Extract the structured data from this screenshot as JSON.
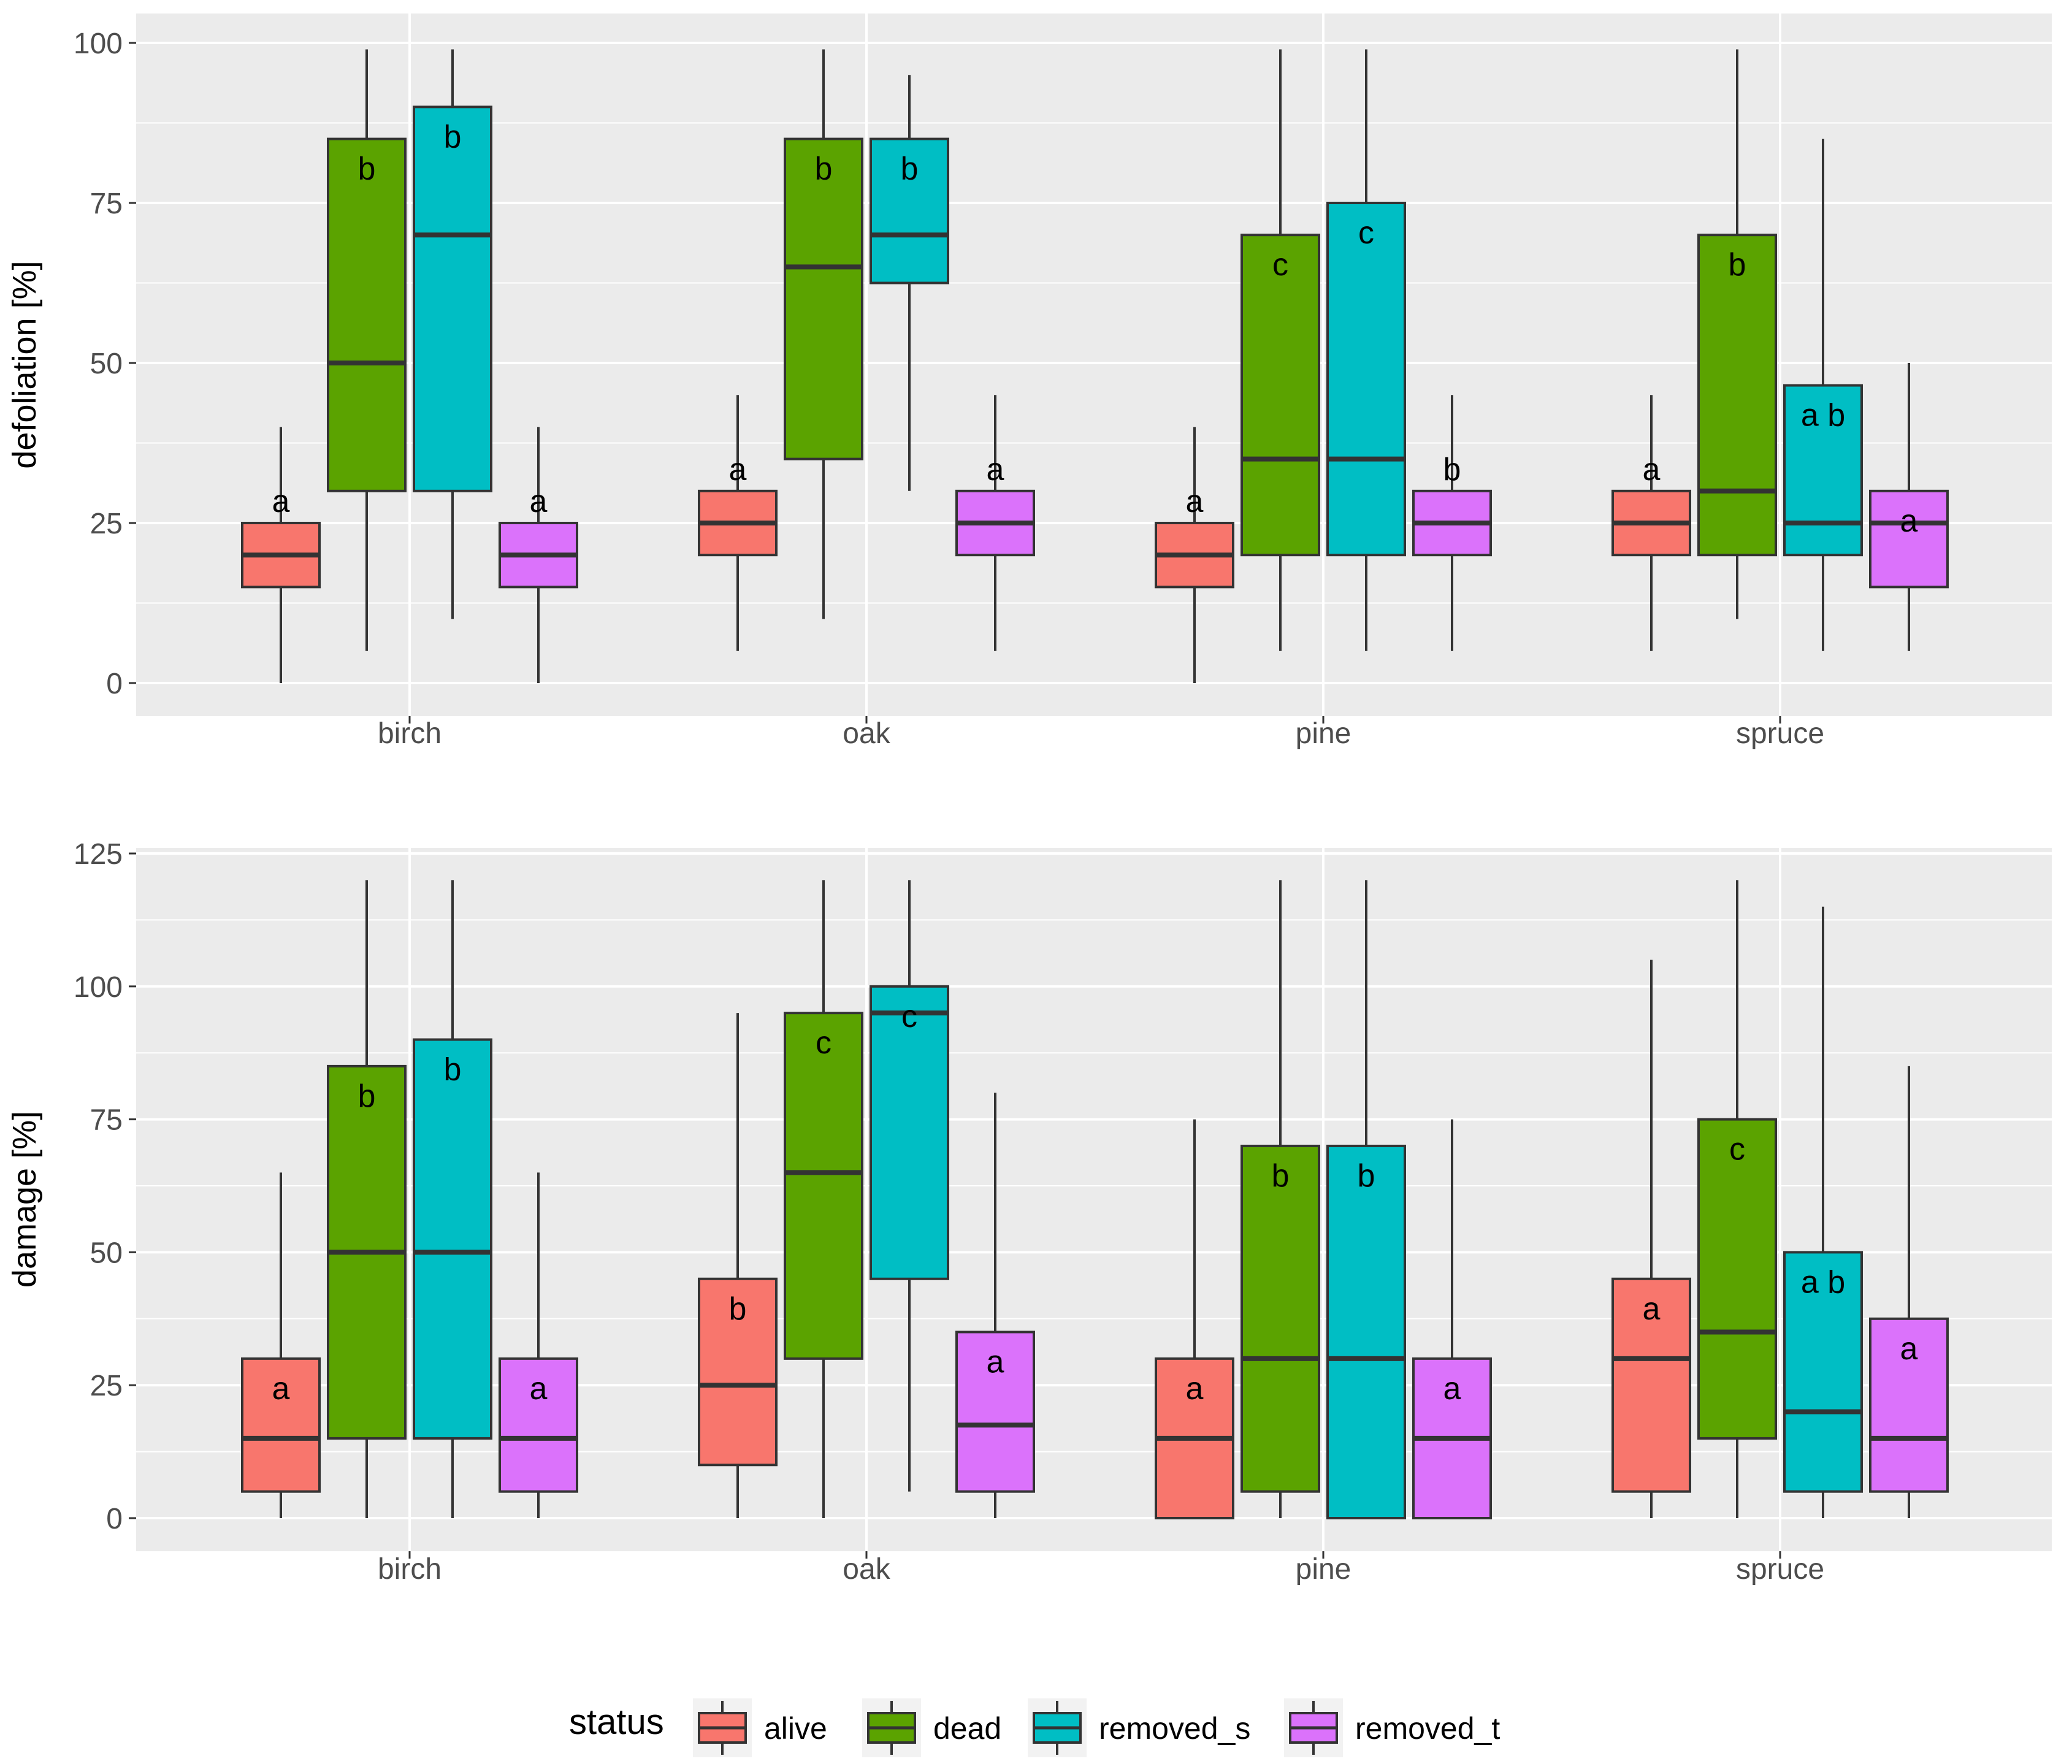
{
  "chart_data": [
    {
      "type": "box",
      "ylabel": "defoliation [%]",
      "xlabel": "",
      "ylim": [
        -5,
        105
      ],
      "yticks": [
        0,
        25,
        50,
        75,
        100
      ],
      "categories": [
        "birch",
        "oak",
        "pine",
        "spruce"
      ],
      "series_names": [
        "alive",
        "dead",
        "removed_s",
        "removed_t"
      ],
      "groups": [
        {
          "category": "birch",
          "boxes": [
            {
              "status": "alive",
              "min": 0,
              "q1": 15,
              "median": 20,
              "q3": 25,
              "max": 40,
              "letter": "a"
            },
            {
              "status": "dead",
              "min": 5,
              "q1": 30,
              "median": 50,
              "q3": 85,
              "max": 99,
              "letter": "b"
            },
            {
              "status": "removed_s",
              "min": 10,
              "q1": 30,
              "median": 70,
              "q3": 90,
              "max": 99,
              "letter": "b"
            },
            {
              "status": "removed_t",
              "min": 0,
              "q1": 15,
              "median": 20,
              "q3": 25,
              "max": 40,
              "letter": "a"
            }
          ]
        },
        {
          "category": "oak",
          "boxes": [
            {
              "status": "alive",
              "min": 5,
              "q1": 20,
              "median": 25,
              "q3": 30,
              "max": 45,
              "letter": "a"
            },
            {
              "status": "dead",
              "min": 10,
              "q1": 35,
              "median": 65,
              "q3": 85,
              "max": 99,
              "letter": "b"
            },
            {
              "status": "removed_s",
              "min": 30,
              "q1": 62.5,
              "median": 70,
              "q3": 85,
              "max": 95,
              "letter": "b"
            },
            {
              "status": "removed_t",
              "min": 5,
              "q1": 20,
              "median": 25,
              "q3": 30,
              "max": 45,
              "letter": "a"
            }
          ]
        },
        {
          "category": "pine",
          "boxes": [
            {
              "status": "alive",
              "min": 0,
              "q1": 15,
              "median": 20,
              "q3": 25,
              "max": 40,
              "letter": "a"
            },
            {
              "status": "dead",
              "min": 5,
              "q1": 20,
              "median": 35,
              "q3": 70,
              "max": 99,
              "letter": "c"
            },
            {
              "status": "removed_s",
              "min": 5,
              "q1": 20,
              "median": 35,
              "q3": 75,
              "max": 99,
              "letter": "c"
            },
            {
              "status": "removed_t",
              "min": 5,
              "q1": 20,
              "median": 25,
              "q3": 30,
              "max": 45,
              "letter": "b"
            }
          ]
        },
        {
          "category": "spruce",
          "boxes": [
            {
              "status": "alive",
              "min": 5,
              "q1": 20,
              "median": 25,
              "q3": 30,
              "max": 45,
              "letter": "a"
            },
            {
              "status": "dead",
              "min": 10,
              "q1": 20,
              "median": 30,
              "q3": 70,
              "max": 99,
              "letter": "b"
            },
            {
              "status": "removed_s",
              "min": 5,
              "q1": 20,
              "median": 25,
              "q3": 46.5,
              "max": 85,
              "letter": "a b"
            },
            {
              "status": "removed_t",
              "min": 5,
              "q1": 15,
              "median": 25,
              "q3": 30,
              "max": 50,
              "letter": "a"
            }
          ]
        }
      ]
    },
    {
      "type": "box",
      "ylabel": "damage [%]",
      "xlabel": "",
      "ylim": [
        -6.25,
        131.25
      ],
      "yticks": [
        0,
        25,
        50,
        75,
        100,
        125
      ],
      "categories": [
        "birch",
        "oak",
        "pine",
        "spruce"
      ],
      "series_names": [
        "alive",
        "dead",
        "removed_s",
        "removed_t"
      ],
      "groups": [
        {
          "category": "birch",
          "boxes": [
            {
              "status": "alive",
              "min": 0,
              "q1": 5,
              "median": 15,
              "q3": 30,
              "max": 65,
              "letter": "a"
            },
            {
              "status": "dead",
              "min": 0,
              "q1": 15,
              "median": 50,
              "q3": 85,
              "max": 120,
              "letter": "b"
            },
            {
              "status": "removed_s",
              "min": 0,
              "q1": 15,
              "median": 50,
              "q3": 90,
              "max": 120,
              "letter": "b"
            },
            {
              "status": "removed_t",
              "min": 0,
              "q1": 5,
              "median": 15,
              "q3": 30,
              "max": 65,
              "letter": "a"
            }
          ]
        },
        {
          "category": "oak",
          "boxes": [
            {
              "status": "alive",
              "min": 0,
              "q1": 10,
              "median": 25,
              "q3": 45,
              "max": 95,
              "letter": "b"
            },
            {
              "status": "dead",
              "min": 0,
              "q1": 30,
              "median": 65,
              "q3": 95,
              "max": 120,
              "letter": "c"
            },
            {
              "status": "removed_s",
              "min": 5,
              "q1": 45,
              "median": 95,
              "q3": 100,
              "max": 120,
              "letter": "c"
            },
            {
              "status": "removed_t",
              "min": 0,
              "q1": 5,
              "median": 17.5,
              "q3": 35,
              "max": 80,
              "letter": "a"
            }
          ]
        },
        {
          "category": "pine",
          "boxes": [
            {
              "status": "alive",
              "min": 0,
              "q1": 0,
              "median": 15,
              "q3": 30,
              "max": 75,
              "letter": "a"
            },
            {
              "status": "dead",
              "min": 0,
              "q1": 5,
              "median": 30,
              "q3": 70,
              "max": 120,
              "letter": "b"
            },
            {
              "status": "removed_s",
              "min": 0,
              "q1": 0,
              "median": 30,
              "q3": 70,
              "max": 120,
              "letter": "b"
            },
            {
              "status": "removed_t",
              "min": 0,
              "q1": 0,
              "median": 15,
              "q3": 30,
              "max": 75,
              "letter": "a"
            }
          ]
        },
        {
          "category": "spruce",
          "boxes": [
            {
              "status": "alive",
              "min": 0,
              "q1": 5,
              "median": 30,
              "q3": 45,
              "max": 105,
              "letter": "a"
            },
            {
              "status": "dead",
              "min": 0,
              "q1": 15,
              "median": 35,
              "q3": 75,
              "max": 120,
              "letter": "c"
            },
            {
              "status": "removed_s",
              "min": 0,
              "q1": 5,
              "median": 20,
              "q3": 50,
              "max": 115,
              "letter": "a b"
            },
            {
              "status": "removed_t",
              "min": 0,
              "q1": 5,
              "median": 15,
              "q3": 37.5,
              "max": 85,
              "letter": "a"
            }
          ]
        }
      ]
    }
  ],
  "legend": {
    "title": "status",
    "position": "bottom",
    "items": [
      {
        "label": "alive",
        "color": "#F8766D"
      },
      {
        "label": "dead",
        "color": "#5BA300"
      },
      {
        "label": "removed_s",
        "color": "#00BEC4"
      },
      {
        "label": "removed_t",
        "color": "#DB72FB"
      }
    ]
  },
  "colors": {
    "panel_background": "#EBEBEB",
    "grid_line": "#FFFFFF",
    "box_outline": "#333333"
  }
}
